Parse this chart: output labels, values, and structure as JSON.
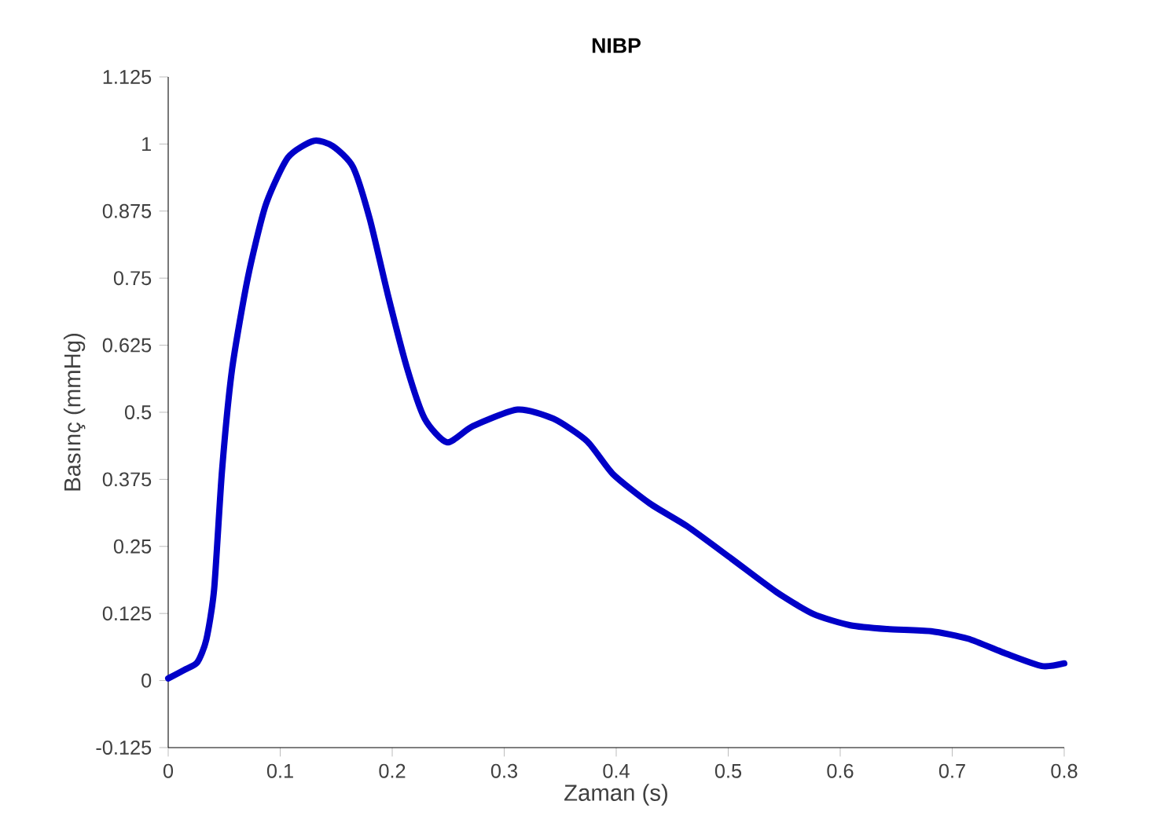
{
  "chart_data": {
    "type": "line",
    "title": "NIBP",
    "xlabel": "Zaman (s)",
    "ylabel": "Basınç (mmHg)",
    "xlim": [
      0,
      0.8
    ],
    "ylim": [
      -0.125,
      1.125
    ],
    "xticks": [
      0,
      0.1,
      0.2,
      0.3,
      0.4,
      0.5,
      0.6,
      0.7,
      0.8
    ],
    "yticks": [
      -0.125,
      0,
      0.125,
      0.25,
      0.375,
      0.5,
      0.625,
      0.75,
      0.875,
      1,
      1.125
    ],
    "grid": false,
    "marker": "none",
    "line_style": "solid",
    "series": [
      {
        "color": "#0000c8",
        "x": [
          0,
          0.0145,
          0.026,
          0.034,
          0.041,
          0.048,
          0.057,
          0.071,
          0.087,
          0.107,
          0.13,
          0.147,
          0.165,
          0.18,
          0.196,
          0.213,
          0.229,
          0.249,
          0.272,
          0.312,
          0.344,
          0.374,
          0.397,
          0.43,
          0.463,
          0.503,
          0.543,
          0.576,
          0.609,
          0.642,
          0.681,
          0.714,
          0.747,
          0.78,
          0.8
        ],
        "values": [
          0.004,
          0.02,
          0.034,
          0.076,
          0.17,
          0.39,
          0.58,
          0.75,
          0.886,
          0.975,
          1.006,
          0.996,
          0.957,
          0.86,
          0.72,
          0.584,
          0.488,
          0.444,
          0.474,
          0.505,
          0.488,
          0.446,
          0.385,
          0.33,
          0.288,
          0.227,
          0.165,
          0.124,
          0.103,
          0.096,
          0.092,
          0.078,
          0.051,
          0.027,
          0.032
        ]
      }
    ]
  }
}
